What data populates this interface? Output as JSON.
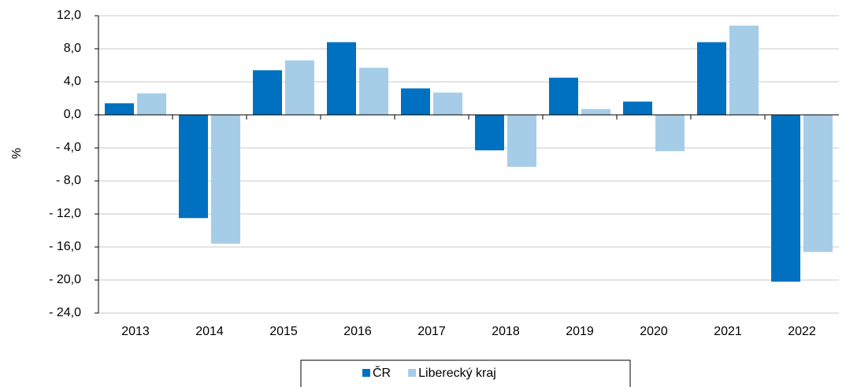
{
  "chart_data": {
    "type": "bar",
    "y_label": "%",
    "categories": [
      "2013",
      "2014",
      "2015",
      "2016",
      "2017",
      "2018",
      "2019",
      "2020",
      "2021",
      "2022"
    ],
    "series": [
      {
        "name": "ČR",
        "color": "#0070c0",
        "values": [
          1.4,
          -12.5,
          5.4,
          8.8,
          3.2,
          -4.3,
          4.5,
          1.6,
          8.8,
          -20.2
        ]
      },
      {
        "name": "Liberecký kraj",
        "color": "#a6cde8",
        "values": [
          2.6,
          -15.6,
          6.6,
          5.7,
          2.7,
          -6.3,
          0.7,
          -4.4,
          10.8,
          -16.6
        ]
      }
    ],
    "ylim": [
      -24,
      12
    ],
    "yticks": [
      {
        "value": 12,
        "label": "12,0"
      },
      {
        "value": 8,
        "label": "8,0"
      },
      {
        "value": 4,
        "label": "4,0"
      },
      {
        "value": 0,
        "label": "0,0"
      },
      {
        "value": -4,
        "label": "- 4,0"
      },
      {
        "value": -8,
        "label": "- 8,0"
      },
      {
        "value": -12,
        "label": "- 12,0"
      },
      {
        "value": -16,
        "label": "- 16,0"
      },
      {
        "value": -20,
        "label": "- 20,0"
      },
      {
        "value": -24,
        "label": "- 24,0"
      }
    ],
    "grid": true,
    "legend": "bottom"
  }
}
